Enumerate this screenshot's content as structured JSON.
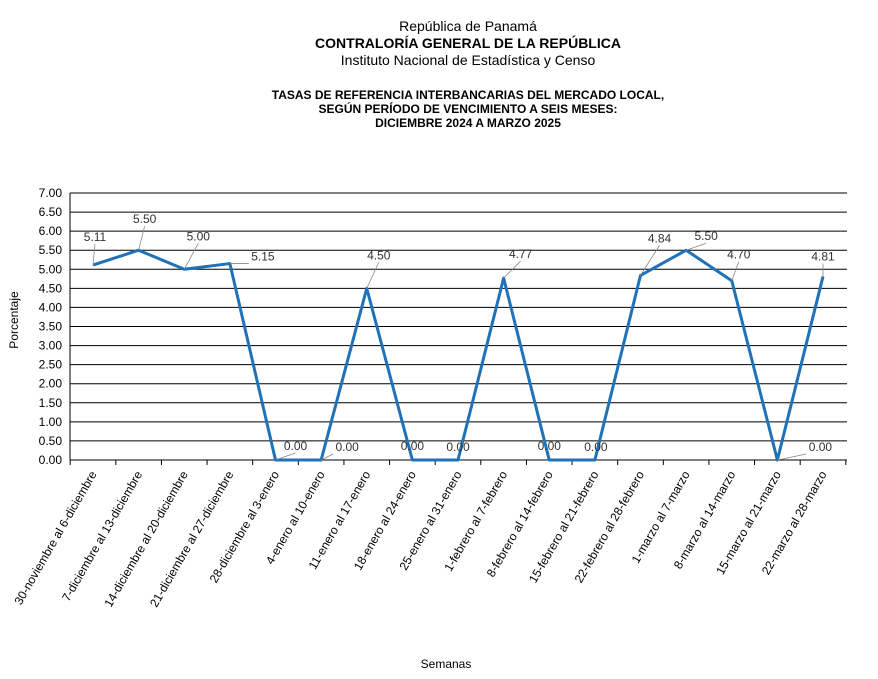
{
  "header": {
    "line1": "República de Panamá",
    "line2": "CONTRALORÍA GENERAL DE LA REPÚBLICA",
    "line3": "Instituto Nacional de Estadística y Censo"
  },
  "chart_data": {
    "type": "line",
    "title": [
      "TASAS DE REFERENCIA INTERBANCARIAS DEL MERCADO LOCAL,",
      "SEGÚN PERÍODO DE VENCIMIENTO A SEIS MESES:",
      "DICIEMBRE 2024 A MARZO 2025"
    ],
    "xlabel": "Semanas",
    "ylabel": "Porcentaje",
    "ylim": [
      0,
      7
    ],
    "yticks": [
      "0.00",
      "0.50",
      "1.00",
      "1.50",
      "2.00",
      "2.50",
      "3.00",
      "3.50",
      "4.00",
      "4.50",
      "5.00",
      "5.50",
      "6.00",
      "6.50",
      "7.00"
    ],
    "grid": true,
    "categories": [
      "30-noviembre al 6-diciembre",
      "7-diciembre al 13-diciembre",
      "14-diciembre al 20-diciembre",
      "21-diciembre al 27-diciembre",
      "28-diciembre al 3-enero",
      "4-enero al 10-enero",
      "11-enero al 17-enero",
      "18-enero al 24-enero",
      "25-enero al 31-enero",
      "1-febrero al 7-febrero",
      "8-febrero al 14-febrero",
      "15-febrero al 21-febrero",
      "22-febrero al 28-febrero",
      "1-marzo al 7-marzo",
      "8-marzo al 14-marzo",
      "15-marzo al 21-marzo",
      "22-marzo al 28-marzo"
    ],
    "values": [
      5.11,
      5.5,
      5.0,
      5.15,
      0.0,
      0.0,
      4.5,
      0.0,
      0.0,
      4.77,
      0.0,
      0.0,
      4.84,
      5.5,
      4.7,
      0.0,
      4.81
    ],
    "labels": [
      "5.11",
      "5.50",
      "5.00",
      "5.15",
      "0.00",
      "0.00",
      "4.50",
      "0.00",
      "0.00",
      "4.77",
      "0.00",
      "0.00",
      "4.84",
      "5.50",
      "4.70",
      "0.00",
      "4.81"
    ],
    "color": "#1f72b8"
  }
}
